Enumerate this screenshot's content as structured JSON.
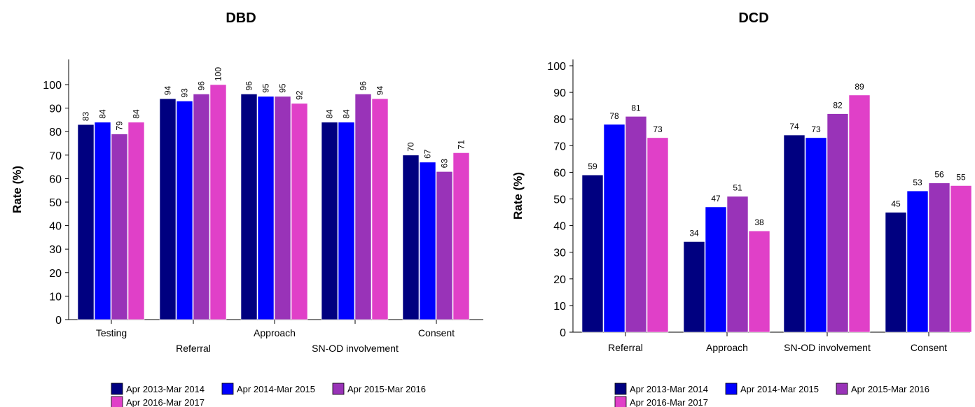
{
  "chart_data": [
    {
      "type": "bar",
      "title": "DBD",
      "ylabel": "Rate (%)",
      "xlabel": "",
      "ylim": [
        0,
        110
      ],
      "yticks": [
        0,
        10,
        20,
        30,
        40,
        50,
        60,
        70,
        80,
        90,
        100
      ],
      "grid": false,
      "legend_position": "bottom",
      "data_label_orientation": "vertical",
      "categories": [
        "Testing",
        "Referral",
        "Approach",
        "SN-OD involvement",
        "Consent"
      ],
      "series": [
        {
          "name": "Apr 2013-Mar 2014",
          "color": "#000080",
          "values": [
            83,
            94,
            96,
            84,
            70
          ]
        },
        {
          "name": "Apr 2014-Mar 2015",
          "color": "#0000ff",
          "values": [
            84,
            93,
            95,
            84,
            67
          ]
        },
        {
          "name": "Apr 2015-Mar 2016",
          "color": "#9933b8",
          "values": [
            79,
            96,
            95,
            96,
            63
          ]
        },
        {
          "name": "Apr 2016-Mar 2017",
          "color": "#e040c8",
          "values": [
            84,
            100,
            92,
            94,
            71
          ]
        }
      ]
    },
    {
      "type": "bar",
      "title": "DCD",
      "ylabel": "Rate (%)",
      "xlabel": "",
      "ylim": [
        0,
        100
      ],
      "yticks": [
        0,
        10,
        20,
        30,
        40,
        50,
        60,
        70,
        80,
        90,
        100
      ],
      "grid": false,
      "legend_position": "bottom",
      "data_label_orientation": "horizontal",
      "categories": [
        "Referral",
        "Approach",
        "SN-OD involvement",
        "Consent"
      ],
      "series": [
        {
          "name": "Apr 2013-Mar 2014",
          "color": "#000080",
          "values": [
            59,
            34,
            74,
            45
          ]
        },
        {
          "name": "Apr 2014-Mar 2015",
          "color": "#0000ff",
          "values": [
            78,
            47,
            73,
            53
          ]
        },
        {
          "name": "Apr 2015-Mar 2016",
          "color": "#9933b8",
          "values": [
            81,
            51,
            82,
            56
          ]
        },
        {
          "name": "Apr 2016-Mar 2017",
          "color": "#e040c8",
          "values": [
            73,
            38,
            89,
            55
          ]
        }
      ]
    }
  ]
}
